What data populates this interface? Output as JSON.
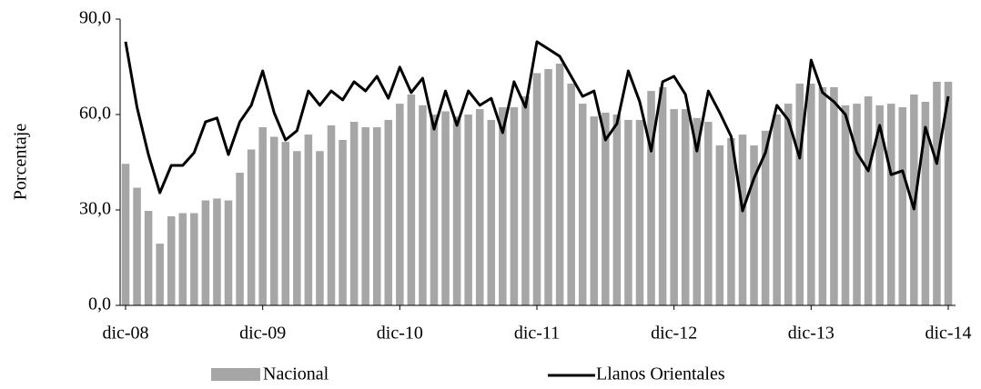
{
  "chart_data": {
    "type": "bar-line",
    "ylabel": "Porcentaje",
    "categories": [
      "dic-08",
      null,
      null,
      null,
      null,
      null,
      null,
      null,
      null,
      null,
      null,
      null,
      "dic-09",
      null,
      null,
      null,
      null,
      null,
      null,
      null,
      null,
      null,
      null,
      null,
      "dic-10",
      null,
      null,
      null,
      null,
      null,
      null,
      null,
      null,
      null,
      null,
      null,
      "dic-11",
      null,
      null,
      null,
      null,
      null,
      null,
      null,
      null,
      null,
      null,
      null,
      "dic-12",
      null,
      null,
      null,
      null,
      null,
      null,
      null,
      null,
      null,
      null,
      null,
      "dic-13",
      null,
      null,
      null,
      null,
      null,
      null,
      null,
      null,
      null,
      null,
      null,
      "dic-14"
    ],
    "series": [
      {
        "name": "Nacional",
        "type": "bar",
        "color": "#a6a6a6",
        "values": [
          44.5,
          37,
          29.7,
          19.4,
          28,
          29,
          29,
          33,
          33.6,
          33,
          41.7,
          49,
          56,
          53,
          51.4,
          48.5,
          53.7,
          48.5,
          56.6,
          52,
          57.7,
          56,
          56,
          58.3,
          63.4,
          66.3,
          62.9,
          60,
          61,
          59.4,
          60,
          61.7,
          58.3,
          62.3,
          62.3,
          65.7,
          73,
          74.3,
          76,
          69.7,
          63.4,
          59.4,
          60.6,
          60,
          58.3,
          58.3,
          67.4,
          68.6,
          61.7,
          61.7,
          58.9,
          57.7,
          50.3,
          52.6,
          53.7,
          50.3,
          54.9,
          60,
          63.4,
          69.7,
          69.7,
          68.6,
          68.6,
          62.9,
          63.4,
          65.7,
          62.9,
          63.4,
          62.3,
          66.3,
          64,
          70.3,
          70.3
        ]
      },
      {
        "name": "Llanos Orientales",
        "type": "line",
        "color": "#000000",
        "values": [
          82.9,
          62.3,
          47.4,
          35.4,
          44,
          44,
          48,
          57.7,
          58.9,
          47.4,
          57.7,
          62.9,
          73.7,
          60.6,
          52,
          54.9,
          67.4,
          62.9,
          67.4,
          64.6,
          70.3,
          67.4,
          72,
          65.1,
          74.9,
          66.9,
          71.4,
          55.4,
          67.4,
          56.6,
          67.4,
          62.9,
          65.1,
          54.3,
          70.3,
          62.3,
          82.9,
          80.6,
          78.3,
          72,
          65.7,
          67.4,
          52,
          57.1,
          73.7,
          64,
          48.5,
          70.3,
          72,
          66.3,
          48.5,
          67.4,
          60.6,
          53.1,
          29.7,
          40,
          48,
          62.9,
          58.3,
          46.3,
          77.1,
          66.9,
          64,
          60,
          48,
          42.3,
          56.6,
          41.1,
          42.3,
          30.3,
          56,
          44.6,
          65.7
        ]
      }
    ],
    "ylim": [
      0,
      90
    ],
    "yticks": [
      {
        "value": 0,
        "label": "0,0"
      },
      {
        "value": 30,
        "label": "30,0"
      },
      {
        "value": 60,
        "label": "60,0"
      },
      {
        "value": 90,
        "label": "90,0"
      }
    ],
    "legend": "bottom"
  }
}
